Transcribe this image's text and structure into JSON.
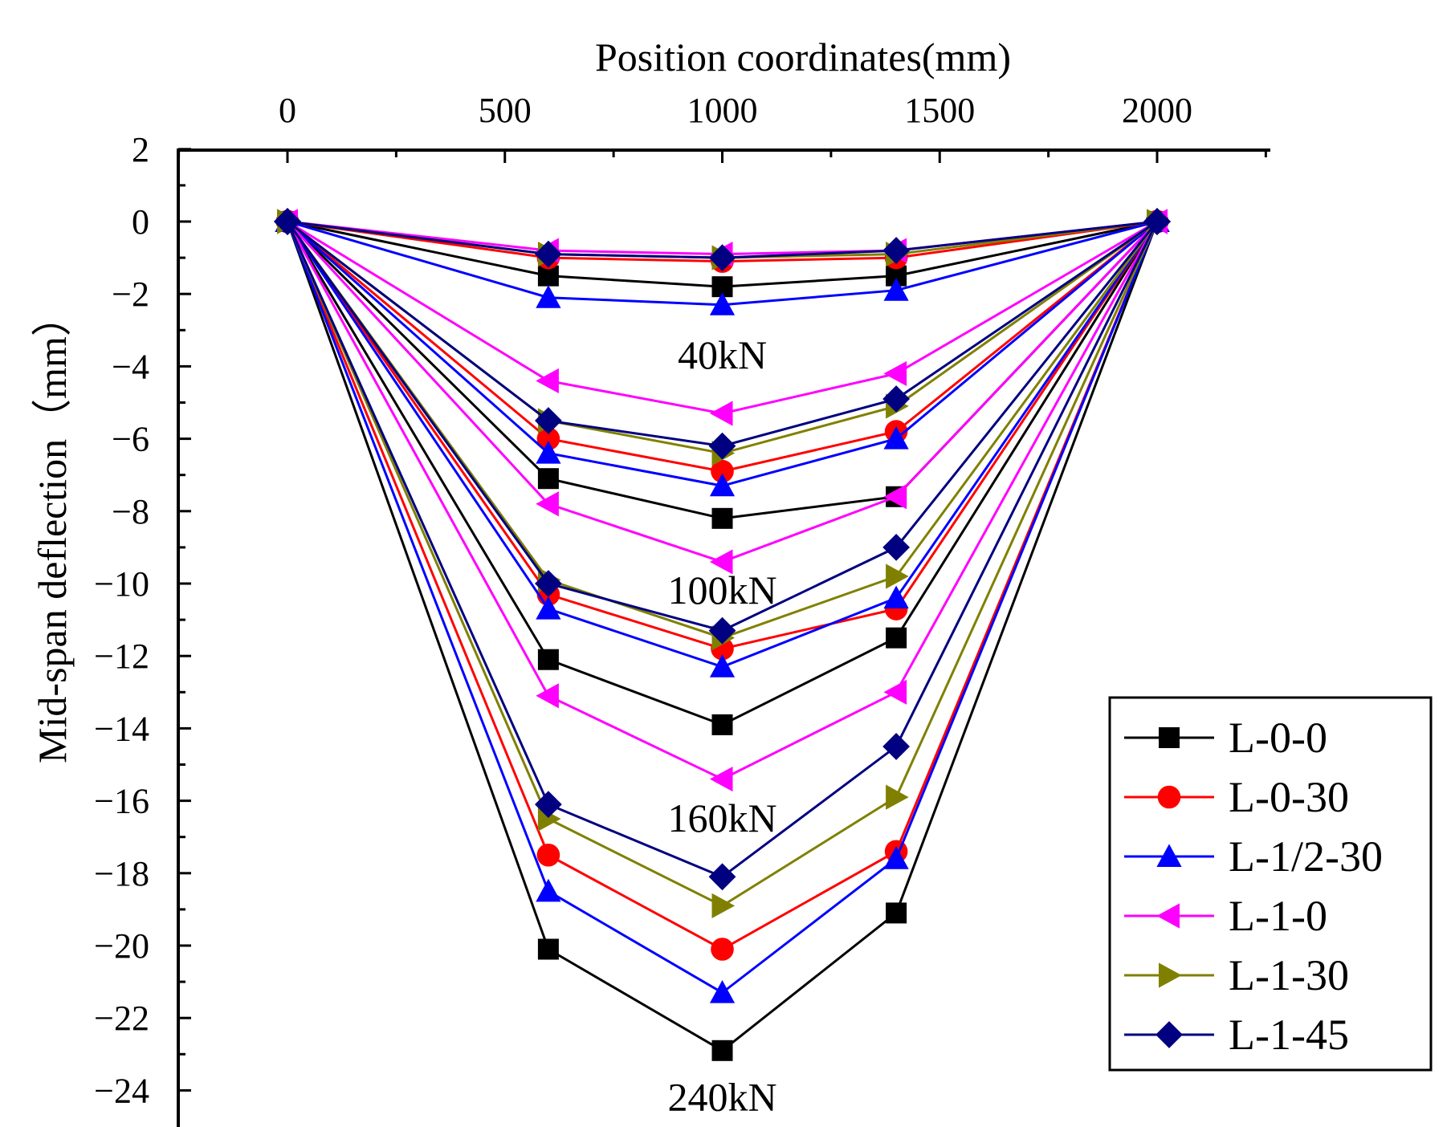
{
  "chart_data": {
    "type": "line",
    "xlabel": "Position coordinates(mm)",
    "ylabel": "Mid-span deflection（mm）",
    "x_axis_position": "top",
    "xlim": [
      -300,
      2250
    ],
    "ylim": [
      -24.8,
      2
    ],
    "xticks": [
      0,
      500,
      1000,
      1500,
      2000
    ],
    "yticks": [
      2,
      0,
      -2,
      -4,
      -6,
      -8,
      -10,
      -12,
      -14,
      -16,
      -18,
      -20,
      -22,
      -24
    ],
    "x": [
      0,
      600,
      1000,
      1400,
      2000
    ],
    "load_levels": [
      "40kN",
      "100kN",
      "160kN",
      "240kN"
    ],
    "load_label_positions": [
      {
        "label": "40kN",
        "x": 1000,
        "y": -3.7
      },
      {
        "label": "100kN",
        "x": 1000,
        "y": -10.2
      },
      {
        "label": "160kN",
        "x": 1000,
        "y": -16.5
      },
      {
        "label": "240kN",
        "x": 1000,
        "y": -24.2
      }
    ],
    "series": [
      {
        "name": "L-0-0",
        "color": "#000000",
        "marker": "square",
        "curves": [
          [
            0,
            -1.5,
            -1.8,
            -1.5,
            0
          ],
          [
            0,
            -7.1,
            -8.2,
            -7.6,
            0
          ],
          [
            0,
            -12.1,
            -13.9,
            -11.5,
            0
          ],
          [
            0,
            -20.1,
            -22.9,
            -19.1,
            0
          ]
        ]
      },
      {
        "name": "L-0-30",
        "color": "#ff0000",
        "marker": "circle",
        "curves": [
          [
            0,
            -1.0,
            -1.1,
            -1.0,
            0
          ],
          [
            0,
            -6.0,
            -6.9,
            -5.8,
            0
          ],
          [
            0,
            -10.3,
            -11.8,
            -10.7,
            0
          ],
          [
            0,
            -17.5,
            -20.1,
            -17.4,
            0
          ]
        ]
      },
      {
        "name": "L-1/2-30",
        "color": "#0000ff",
        "marker": "triangle-up",
        "curves": [
          [
            0,
            -2.1,
            -2.3,
            -1.9,
            0
          ],
          [
            0,
            -6.4,
            -7.3,
            -6.0,
            0
          ],
          [
            0,
            -10.7,
            -12.3,
            -10.4,
            0
          ],
          [
            0,
            -18.5,
            -21.3,
            -17.6,
            0
          ]
        ]
      },
      {
        "name": "L-1-0",
        "color": "#ff00ff",
        "marker": "triangle-left",
        "curves": [
          [
            0,
            -0.8,
            -0.9,
            -0.8,
            0
          ],
          [
            0,
            -4.4,
            -5.3,
            -4.2,
            0
          ],
          [
            0,
            -7.8,
            -9.4,
            -7.6,
            0
          ],
          [
            0,
            -13.1,
            -15.4,
            -13.0,
            0
          ]
        ]
      },
      {
        "name": "L-1-30",
        "color": "#808000",
        "marker": "triangle-right",
        "curves": [
          [
            0,
            -0.9,
            -1.0,
            -0.9,
            0
          ],
          [
            0,
            -5.5,
            -6.4,
            -5.1,
            0
          ],
          [
            0,
            -9.9,
            -11.5,
            -9.8,
            0
          ],
          [
            0,
            -16.5,
            -18.9,
            -15.9,
            0
          ]
        ]
      },
      {
        "name": "L-1-45",
        "color": "#000080",
        "marker": "diamond",
        "curves": [
          [
            0,
            -0.9,
            -1.0,
            -0.8,
            0
          ],
          [
            0,
            -5.5,
            -6.2,
            -4.9,
            0
          ],
          [
            0,
            -10.0,
            -11.3,
            -9.0,
            0
          ],
          [
            0,
            -16.1,
            -18.1,
            -14.5,
            0
          ]
        ]
      }
    ],
    "legend_position": "bottom-right"
  }
}
